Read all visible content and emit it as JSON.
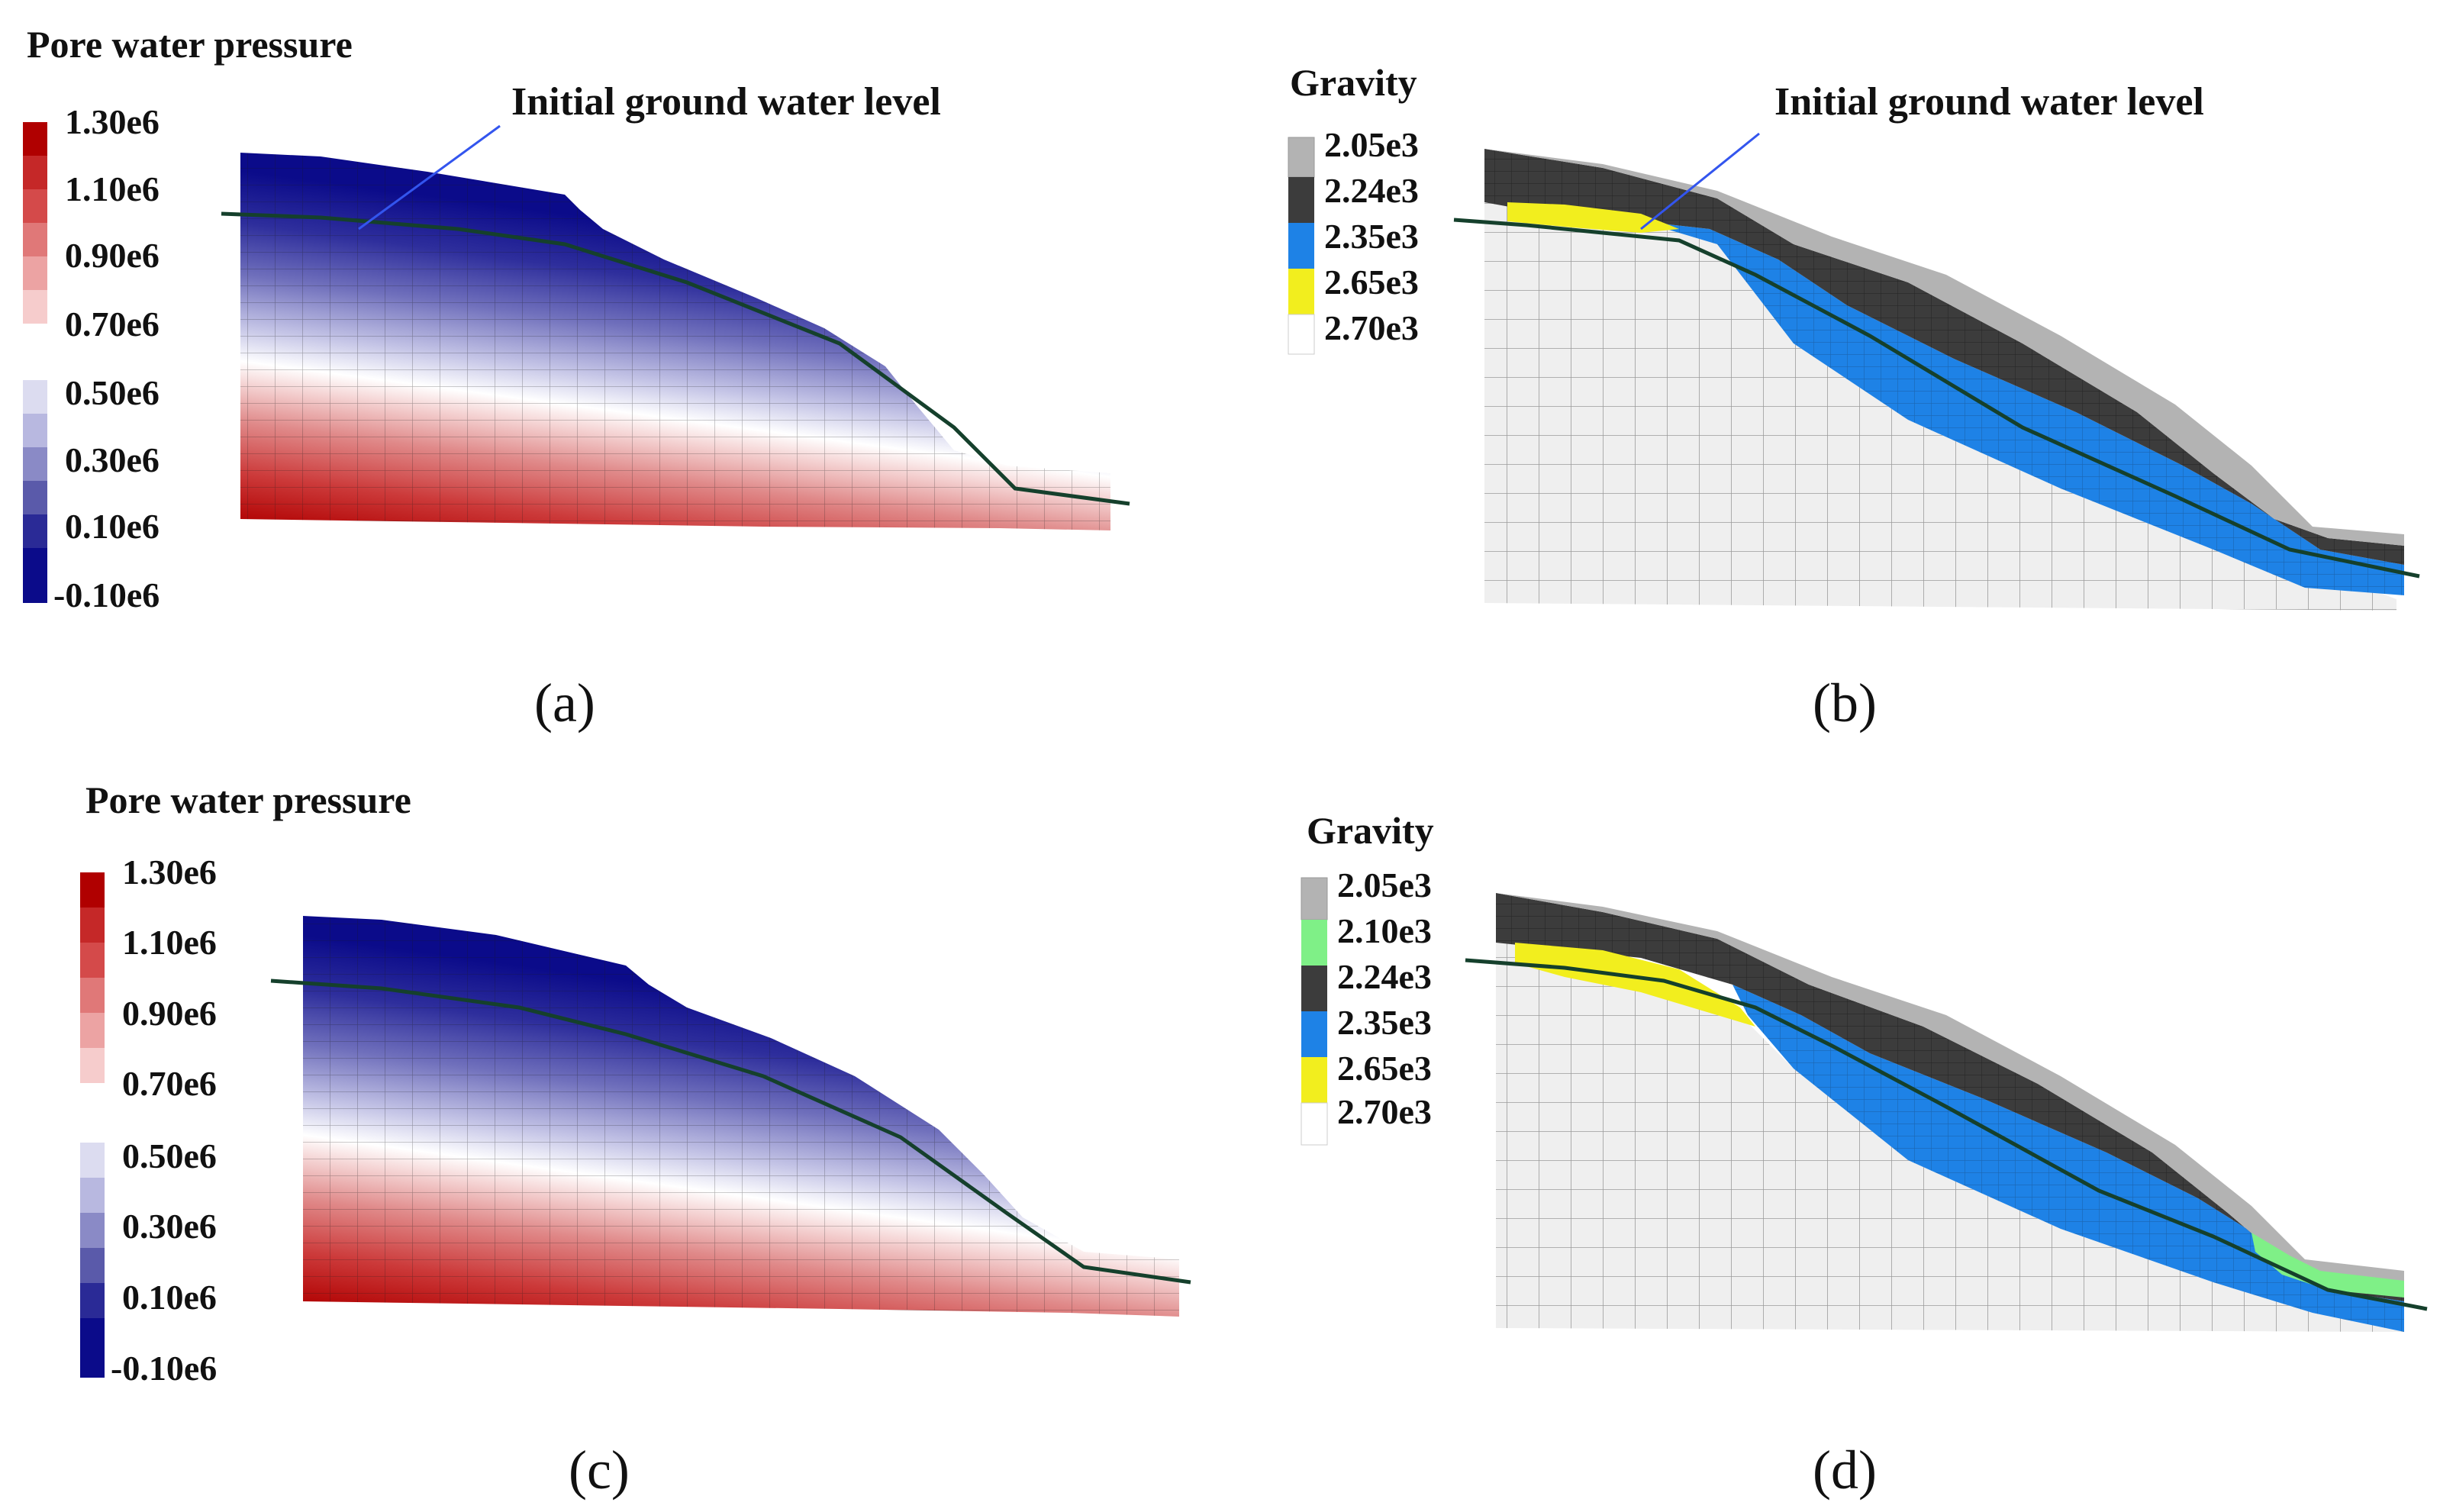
{
  "panels": {
    "a": {
      "caption": "(a)",
      "legend_title": "Pore water pressure",
      "ticks": [
        "1.30e6",
        "1.10e6",
        "0.90e6",
        "0.70e6",
        "0.50e6",
        "0.30e6",
        "0.10e6",
        "-0.10e6"
      ],
      "annotation": "Initial ground water level"
    },
    "b": {
      "caption": "(b)",
      "legend_title": "Gravity",
      "annotation": "Initial ground water level",
      "legend": [
        {
          "label": "2.05e3",
          "color": "#b3b3b3"
        },
        {
          "label": "2.24e3",
          "color": "#3c3c3c"
        },
        {
          "label": "2.35e3",
          "color": "#1e82e6"
        },
        {
          "label": "2.65e3",
          "color": "#f2ee1e"
        },
        {
          "label": "2.70e3",
          "color": "#ffffff"
        }
      ]
    },
    "c": {
      "caption": "(c)",
      "legend_title": "Pore water pressure",
      "ticks": [
        "1.30e6",
        "1.10e6",
        "0.90e6",
        "0.70e6",
        "0.50e6",
        "0.30e6",
        "0.10e6",
        "-0.10e6"
      ]
    },
    "d": {
      "caption": "(d)",
      "legend_title": "Gravity",
      "legend": [
        {
          "label": "2.05e3",
          "color": "#b3b3b3"
        },
        {
          "label": "2.10e3",
          "color": "#7ff087"
        },
        {
          "label": "2.24e3",
          "color": "#3c3c3c"
        },
        {
          "label": "2.35e3",
          "color": "#1e82e6"
        },
        {
          "label": "2.65e3",
          "color": "#f2ee1e"
        },
        {
          "label": "2.70e3",
          "color": "#ffffff"
        }
      ]
    }
  },
  "colors": {
    "pressure_scale": [
      "#b00000",
      "#c52828",
      "#d65555",
      "#e58989",
      "#f2c2c2",
      "#ffffff",
      "#dcdcf0",
      "#b8b8e0",
      "#8a8ac6",
      "#5a5aaa",
      "#2a2a96",
      "#0b0b8a"
    ],
    "mesh_line": "#2a2a2a",
    "water_line": "#15402c",
    "leader": "#3355ee",
    "soil_base": "#efefef"
  }
}
